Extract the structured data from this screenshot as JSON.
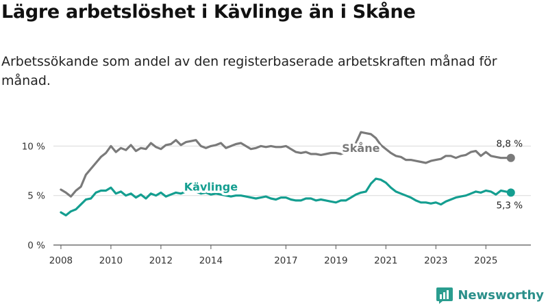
{
  "title": "Lägre arbetslöshet i Kävlinge än i Skåne",
  "subtitle": "Arbetssökande som andel av den registerbaserade arbetskraften månad för månad.",
  "brand": {
    "name": "Newsworthy",
    "color": "#2a9d8f"
  },
  "chart_data": {
    "type": "line",
    "ylim": [
      0,
      13
    ],
    "xlim": [
      2007.7,
      2026.8
    ],
    "yticks": [
      {
        "value": 0,
        "label": "0 %"
      },
      {
        "value": 5,
        "label": "5 %"
      },
      {
        "value": 10,
        "label": "10 %"
      }
    ],
    "xticks": [
      {
        "value": 2008,
        "label": "2008"
      },
      {
        "value": 2010,
        "label": "2010"
      },
      {
        "value": 2012,
        "label": "2012"
      },
      {
        "value": 2014,
        "label": "2014"
      },
      {
        "value": 2017,
        "label": "2017"
      },
      {
        "value": 2019,
        "label": "2019"
      },
      {
        "value": 2021,
        "label": "2021"
      },
      {
        "value": 2023,
        "label": "2023"
      },
      {
        "value": 2025,
        "label": "2025"
      }
    ],
    "grid": true,
    "series": [
      {
        "name": "Skåne",
        "color": "#7a7a7a",
        "end_label": "8,8 %",
        "x": [
          2008.0,
          2008.2,
          2008.4,
          2008.6,
          2008.8,
          2009.0,
          2009.2,
          2009.4,
          2009.6,
          2009.8,
          2010.0,
          2010.2,
          2010.4,
          2010.6,
          2010.8,
          2011.0,
          2011.2,
          2011.4,
          2011.6,
          2011.8,
          2012.0,
          2012.2,
          2012.4,
          2012.6,
          2012.8,
          2013.0,
          2013.2,
          2013.4,
          2013.6,
          2013.8,
          2014.0,
          2014.2,
          2014.4,
          2014.6,
          2014.8,
          2015.0,
          2015.2,
          2015.4,
          2015.6,
          2015.8,
          2016.0,
          2016.2,
          2016.4,
          2016.6,
          2016.8,
          2017.0,
          2017.2,
          2017.4,
          2017.6,
          2017.8,
          2018.0,
          2018.2,
          2018.4,
          2018.6,
          2018.8,
          2019.0,
          2019.2,
          2019.4,
          2019.6,
          2019.8,
          2020.0,
          2020.2,
          2020.4,
          2020.6,
          2020.8,
          2021.0,
          2021.2,
          2021.4,
          2021.6,
          2021.8,
          2022.0,
          2022.2,
          2022.4,
          2022.6,
          2022.8,
          2023.0,
          2023.2,
          2023.4,
          2023.6,
          2023.8,
          2024.0,
          2024.2,
          2024.4,
          2024.6,
          2024.8,
          2025.0,
          2025.2,
          2025.4,
          2025.6,
          2025.8,
          2026.0
        ],
        "y": [
          5.6,
          5.3,
          4.9,
          5.5,
          5.9,
          7.1,
          7.7,
          8.3,
          8.9,
          9.3,
          10.0,
          9.4,
          9.8,
          9.6,
          10.1,
          9.5,
          9.8,
          9.7,
          10.3,
          9.9,
          9.7,
          10.1,
          10.2,
          10.6,
          10.1,
          10.4,
          10.5,
          10.6,
          10.0,
          9.8,
          10.0,
          10.1,
          10.3,
          9.8,
          10.0,
          10.2,
          10.3,
          10.0,
          9.7,
          9.8,
          10.0,
          9.9,
          10.0,
          9.9,
          9.9,
          10.0,
          9.7,
          9.4,
          9.3,
          9.4,
          9.2,
          9.2,
          9.1,
          9.2,
          9.3,
          9.3,
          9.2,
          9.4,
          9.8,
          10.3,
          11.4,
          11.3,
          11.2,
          10.8,
          10.1,
          9.7,
          9.3,
          9.0,
          8.9,
          8.6,
          8.6,
          8.5,
          8.4,
          8.3,
          8.5,
          8.6,
          8.7,
          9.0,
          9.0,
          8.8,
          9.0,
          9.1,
          9.4,
          9.5,
          9.0,
          9.4,
          9.0,
          8.9,
          8.8,
          8.8,
          8.8
        ]
      },
      {
        "name": "Kävlinge",
        "color": "#149e90",
        "end_label": "5,3 %",
        "x": [
          2008.0,
          2008.2,
          2008.4,
          2008.6,
          2008.8,
          2009.0,
          2009.2,
          2009.4,
          2009.6,
          2009.8,
          2010.0,
          2010.2,
          2010.4,
          2010.6,
          2010.8,
          2011.0,
          2011.2,
          2011.4,
          2011.6,
          2011.8,
          2012.0,
          2012.2,
          2012.4,
          2012.6,
          2012.8,
          2013.0,
          2013.2,
          2013.4,
          2013.6,
          2013.8,
          2014.0,
          2014.2,
          2014.4,
          2014.6,
          2014.8,
          2015.0,
          2015.2,
          2015.4,
          2015.6,
          2015.8,
          2016.0,
          2016.2,
          2016.4,
          2016.6,
          2016.8,
          2017.0,
          2017.2,
          2017.4,
          2017.6,
          2017.8,
          2018.0,
          2018.2,
          2018.4,
          2018.6,
          2018.8,
          2019.0,
          2019.2,
          2019.4,
          2019.6,
          2019.8,
          2020.0,
          2020.2,
          2020.4,
          2020.6,
          2020.8,
          2021.0,
          2021.2,
          2021.4,
          2021.6,
          2021.8,
          2022.0,
          2022.2,
          2022.4,
          2022.6,
          2022.8,
          2023.0,
          2023.2,
          2023.4,
          2023.6,
          2023.8,
          2024.0,
          2024.2,
          2024.4,
          2024.6,
          2024.8,
          2025.0,
          2025.2,
          2025.4,
          2025.6,
          2025.8,
          2026.0
        ],
        "y": [
          3.3,
          3.0,
          3.4,
          3.6,
          4.1,
          4.6,
          4.7,
          5.3,
          5.5,
          5.5,
          5.8,
          5.2,
          5.4,
          5.0,
          5.2,
          4.8,
          5.1,
          4.7,
          5.2,
          5.0,
          5.3,
          4.9,
          5.1,
          5.3,
          5.2,
          5.4,
          5.5,
          5.4,
          5.2,
          5.3,
          5.1,
          5.2,
          5.1,
          5.0,
          4.9,
          5.0,
          5.0,
          4.9,
          4.8,
          4.7,
          4.8,
          4.9,
          4.7,
          4.6,
          4.8,
          4.8,
          4.6,
          4.5,
          4.5,
          4.7,
          4.7,
          4.5,
          4.6,
          4.5,
          4.4,
          4.3,
          4.5,
          4.5,
          4.8,
          5.1,
          5.3,
          5.4,
          6.2,
          6.7,
          6.6,
          6.3,
          5.8,
          5.4,
          5.2,
          5.0,
          4.8,
          4.5,
          4.3,
          4.3,
          4.2,
          4.3,
          4.1,
          4.4,
          4.6,
          4.8,
          4.9,
          5.0,
          5.2,
          5.4,
          5.3,
          5.5,
          5.4,
          5.1,
          5.5,
          5.4,
          5.3
        ]
      }
    ]
  }
}
